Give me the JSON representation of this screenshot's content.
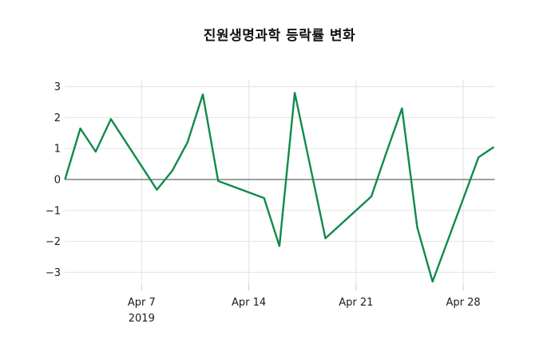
{
  "title": "진원생명과학 등락률 변화",
  "colors": {
    "line": "#118a4a",
    "grid": "#e7e7e7",
    "zero_line": "#404040",
    "tick_mark": "#d4d4d4",
    "tick_label": "#1a1a1a",
    "background": "#ffffff"
  },
  "chart_data": {
    "type": "line",
    "title": "진원생명과학 등락률 변화",
    "xlabel": "",
    "ylabel": "",
    "legend": "none",
    "grid": true,
    "zero_line": true,
    "ylim": [
      -3.4,
      3.3
    ],
    "xlim_days": [
      0,
      28
    ],
    "yticks": [
      {
        "label": "3",
        "value": 3
      },
      {
        "label": "2",
        "value": 2
      },
      {
        "label": "1",
        "value": 1
      },
      {
        "label": "0",
        "value": 0
      },
      {
        "label": "−1",
        "value": -1
      },
      {
        "label": "−2",
        "value": -2
      },
      {
        "label": "−3",
        "value": -3
      }
    ],
    "xticks": [
      {
        "label": "Apr 7",
        "sublabel": "2019",
        "day": 5
      },
      {
        "label": "Apr 14",
        "sublabel": "",
        "day": 12
      },
      {
        "label": "Apr 21",
        "sublabel": "",
        "day": 19
      },
      {
        "label": "Apr 28",
        "sublabel": "",
        "day": 26
      }
    ],
    "series_name": "진원생명과학 등락률",
    "points": [
      {
        "date": "Apr 2 2019",
        "day": 0,
        "value": 0.0
      },
      {
        "date": "Apr 3 2019",
        "day": 1,
        "value": 1.65
      },
      {
        "date": "Apr 4 2019",
        "day": 2,
        "value": 0.9
      },
      {
        "date": "Apr 5 2019",
        "day": 3,
        "value": 1.95
      },
      {
        "date": "Apr 8 2019",
        "day": 6,
        "value": -0.33
      },
      {
        "date": "Apr 9 2019",
        "day": 7,
        "value": 0.28
      },
      {
        "date": "Apr 10 2019",
        "day": 8,
        "value": 1.2
      },
      {
        "date": "Apr 11 2019",
        "day": 9,
        "value": 2.75
      },
      {
        "date": "Apr 12 2019",
        "day": 10,
        "value": -0.05
      },
      {
        "date": "Apr 15 2019",
        "day": 13,
        "value": -0.6
      },
      {
        "date": "Apr 16 2019",
        "day": 14,
        "value": -2.15
      },
      {
        "date": "Apr 17 2019",
        "day": 15,
        "value": 2.8
      },
      {
        "date": "Apr 18 2019",
        "day": 16,
        "value": 0.45
      },
      {
        "date": "Apr 19 2019",
        "day": 17,
        "value": -1.9
      },
      {
        "date": "Apr 22 2019",
        "day": 20,
        "value": -0.55
      },
      {
        "date": "Apr 23 2019",
        "day": 21,
        "value": 0.9
      },
      {
        "date": "Apr 24 2019",
        "day": 22,
        "value": 2.3
      },
      {
        "date": "Apr 25 2019",
        "day": 23,
        "value": -1.55
      },
      {
        "date": "Apr 26 2019",
        "day": 24,
        "value": -3.3
      },
      {
        "date": "Apr 29 2019",
        "day": 27,
        "value": 0.72
      },
      {
        "date": "Apr 30 2019",
        "day": 28,
        "value": 1.05
      }
    ]
  }
}
